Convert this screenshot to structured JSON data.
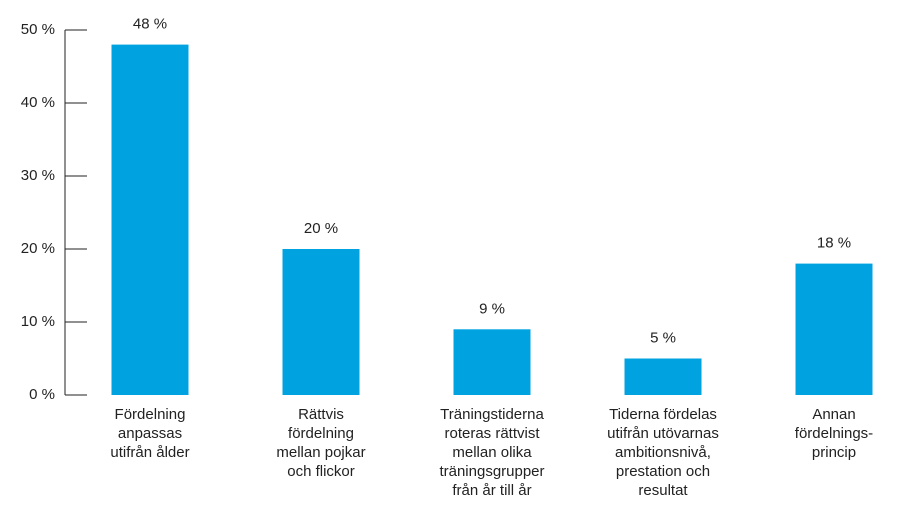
{
  "chart_data": {
    "type": "bar",
    "categories": [
      "Fördelning\nanpassas\nutifrån ålder",
      "Rättvis\nfördelning\nmellan pojkar\noch flickor",
      "Träningstiderna\nroteras rättvist\nmellan olika\nträningsgrupper\nfrån år till år",
      "Tiderna fördelas\nutifrån utövarnas\nambitionsnivå,\nprestation och\nresultat",
      "Annan\nfördelnings-\nprincip"
    ],
    "values": [
      48,
      20,
      9,
      5,
      18
    ],
    "value_labels": [
      "48 %",
      "20 %",
      "9 %",
      "5 %",
      "18 %"
    ],
    "color": "#00a3e0",
    "ylim": [
      0,
      50
    ],
    "yticks": [
      {
        "value": 0,
        "label": "0 %"
      },
      {
        "value": 10,
        "label": "10 %"
      },
      {
        "value": 20,
        "label": "20 %"
      },
      {
        "value": 30,
        "label": "30 %"
      },
      {
        "value": 40,
        "label": "40 %"
      },
      {
        "value": 50,
        "label": "50 %"
      }
    ],
    "grid": false
  }
}
